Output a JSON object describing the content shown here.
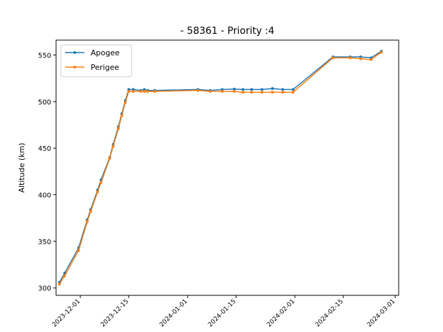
{
  "chart_data": {
    "type": "line",
    "title": "- 58361 - Priority :4",
    "xlabel": "",
    "ylabel": "Altitude (km)",
    "ylim": [
      292,
      566
    ],
    "xlim": [
      "2023-11-24",
      "2024-03-02"
    ],
    "yticks": [
      300,
      350,
      400,
      450,
      500,
      550
    ],
    "xticks": [
      "2023-12-01",
      "2023-12-15",
      "2024-01-01",
      "2024-01-15",
      "2024-02-01",
      "2024-02-15",
      "2024-03-01"
    ],
    "grid": false,
    "legend_position": "top-left",
    "series": [
      {
        "name": "Apogee",
        "color": "#1f77b4",
        "points": [
          [
            "2023-11-25",
            306
          ],
          [
            "2023-11-26.5",
            316
          ],
          [
            "2023-11-30.5",
            343
          ],
          [
            "2023-12-03",
            373
          ],
          [
            "2023-12-04",
            384
          ],
          [
            "2023-12-06",
            405
          ],
          [
            "2023-12-07",
            416
          ],
          [
            "2023-12-09.5",
            440
          ],
          [
            "2023-12-10.5",
            454
          ],
          [
            "2023-12-12",
            473
          ],
          [
            "2023-12-13",
            487
          ],
          [
            "2023-12-14",
            501
          ],
          [
            "2023-12-15",
            513
          ],
          [
            "2023-12-16.3",
            513
          ],
          [
            "2023-12-18.5",
            512
          ],
          [
            "2023-12-19.5",
            513
          ],
          [
            "2023-12-20.5",
            512
          ],
          [
            "2023-12-22.5",
            512
          ],
          [
            "2024-01-04",
            513
          ],
          [
            "2024-01-07.5",
            512
          ],
          [
            "2024-01-11",
            513
          ],
          [
            "2024-01-14.5",
            513.5
          ],
          [
            "2024-01-17",
            513
          ],
          [
            "2024-01-19.5",
            513
          ],
          [
            "2024-01-22.5",
            513
          ],
          [
            "2024-01-25.5",
            514
          ],
          [
            "2024-01-28.5",
            513
          ],
          [
            "2024-01-31.5",
            513
          ],
          [
            "2024-02-12",
            548
          ],
          [
            "2024-02-17",
            548
          ],
          [
            "2024-02-20",
            548
          ],
          [
            "2024-02-23",
            547
          ],
          [
            "2024-02-26",
            554
          ]
        ]
      },
      {
        "name": "Perigee",
        "color": "#ff7f0e",
        "points": [
          [
            "2023-11-25",
            304
          ],
          [
            "2023-11-26.5",
            313
          ],
          [
            "2023-11-30.5",
            340
          ],
          [
            "2023-12-03",
            371
          ],
          [
            "2023-12-04",
            382
          ],
          [
            "2023-12-06",
            403
          ],
          [
            "2023-12-07",
            413
          ],
          [
            "2023-12-09.5",
            439
          ],
          [
            "2023-12-10.5",
            452
          ],
          [
            "2023-12-12",
            471
          ],
          [
            "2023-12-13",
            485
          ],
          [
            "2023-12-14",
            499
          ],
          [
            "2023-12-15",
            511
          ],
          [
            "2023-12-16.3",
            511
          ],
          [
            "2023-12-18.5",
            511
          ],
          [
            "2023-12-19.5",
            511
          ],
          [
            "2023-12-20.5",
            511
          ],
          [
            "2023-12-22.5",
            511
          ],
          [
            "2024-01-04",
            512
          ],
          [
            "2024-01-07.5",
            511
          ],
          [
            "2024-01-11",
            511
          ],
          [
            "2024-01-14.5",
            511
          ],
          [
            "2024-01-17",
            510
          ],
          [
            "2024-01-19.5",
            510
          ],
          [
            "2024-01-22.5",
            510
          ],
          [
            "2024-01-25.5",
            510
          ],
          [
            "2024-01-28.5",
            510
          ],
          [
            "2024-01-31.5",
            510
          ],
          [
            "2024-02-12",
            547
          ],
          [
            "2024-02-17",
            547
          ],
          [
            "2024-02-20",
            546
          ],
          [
            "2024-02-23",
            545
          ],
          [
            "2024-02-26",
            553
          ]
        ]
      }
    ]
  }
}
